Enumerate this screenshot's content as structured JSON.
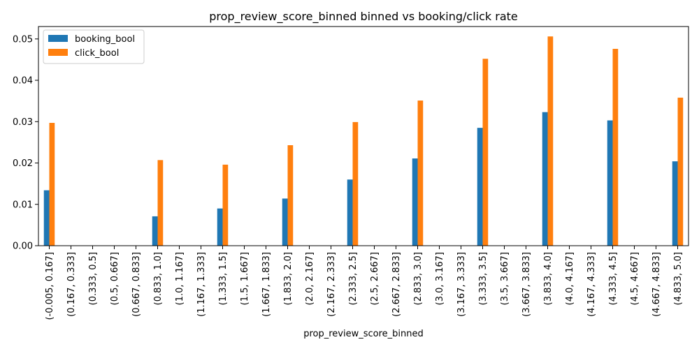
{
  "chart_data": {
    "type": "bar",
    "title": "prop_review_score_binned binned vs booking/click rate",
    "xlabel": "prop_review_score_binned",
    "ylabel": "",
    "ylim": [
      0,
      0.053
    ],
    "yticks": [
      "0.00",
      "0.01",
      "0.02",
      "0.03",
      "0.04",
      "0.05"
    ],
    "ytick_values": [
      0,
      0.01,
      0.02,
      0.03,
      0.04,
      0.05
    ],
    "grid": false,
    "legend_position": "top-left",
    "categories": [
      "(-0.005, 0.167]",
      "(0.167, 0.333]",
      "(0.333, 0.5]",
      "(0.5, 0.667]",
      "(0.667, 0.833]",
      "(0.833, 1.0]",
      "(1.0, 1.167]",
      "(1.167, 1.333]",
      "(1.333, 1.5]",
      "(1.5, 1.667]",
      "(1.667, 1.833]",
      "(1.833, 2.0]",
      "(2.0, 2.167]",
      "(2.167, 2.333]",
      "(2.333, 2.5]",
      "(2.5, 2.667]",
      "(2.667, 2.833]",
      "(2.833, 3.0]",
      "(3.0, 3.167]",
      "(3.167, 3.333]",
      "(3.333, 3.5]",
      "(3.5, 3.667]",
      "(3.667, 3.833]",
      "(3.833, 4.0]",
      "(4.0, 4.167]",
      "(4.167, 4.333]",
      "(4.333, 4.5]",
      "(4.5, 4.667]",
      "(4.667, 4.833]",
      "(4.833, 5.0]"
    ],
    "series": [
      {
        "name": "booking_bool",
        "color": "#1f77b4",
        "values": [
          0.0134,
          0,
          0,
          0,
          0,
          0.0071,
          0,
          0,
          0.009,
          0,
          0,
          0.0114,
          0,
          0,
          0.016,
          0,
          0,
          0.0211,
          0,
          0,
          0.0285,
          0,
          0,
          0.0323,
          0,
          0,
          0.0303,
          0,
          0,
          0.0204
        ]
      },
      {
        "name": "click_bool",
        "color": "#ff7f0e",
        "values": [
          0.0297,
          0,
          0,
          0,
          0,
          0.0207,
          0,
          0,
          0.0196,
          0,
          0,
          0.0243,
          0,
          0,
          0.0299,
          0,
          0,
          0.0351,
          0,
          0,
          0.0452,
          0,
          0,
          0.0506,
          0,
          0,
          0.0476,
          0,
          0,
          0.0358
        ]
      }
    ]
  }
}
